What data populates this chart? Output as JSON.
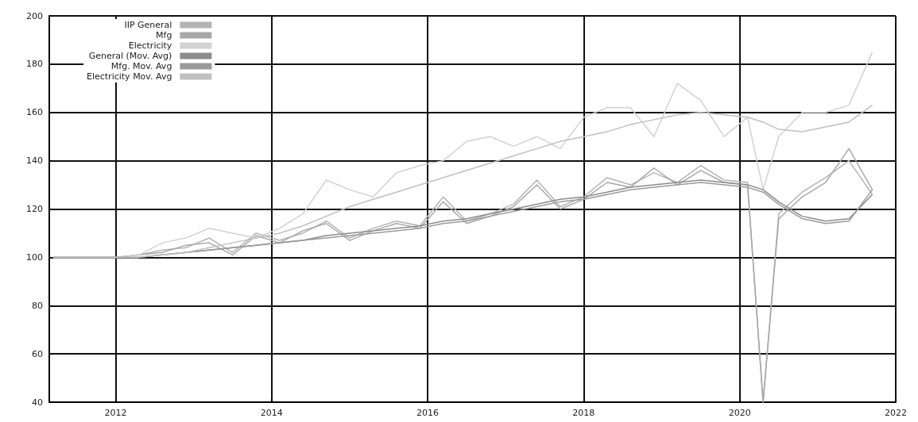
{
  "chart_data": {
    "type": "line",
    "x": [
      2011.2,
      2011.6,
      2012.0,
      2012.3,
      2012.6,
      2012.9,
      2013.2,
      2013.5,
      2013.8,
      2014.1,
      2014.4,
      2014.7,
      2015.0,
      2015.3,
      2015.6,
      2015.9,
      2016.2,
      2016.5,
      2016.8,
      2017.1,
      2017.4,
      2017.7,
      2018.0,
      2018.3,
      2018.6,
      2018.9,
      2019.2,
      2019.5,
      2019.8,
      2020.1,
      2020.3,
      2020.5,
      2020.8,
      2021.1,
      2021.4,
      2021.7
    ],
    "xlim": [
      2011.15,
      2022
    ],
    "xticks": [
      2012,
      2014,
      2016,
      2018,
      2020,
      2022
    ],
    "ylim": [
      40,
      200
    ],
    "yticks": [
      40,
      60,
      80,
      100,
      120,
      140,
      160,
      180,
      200
    ],
    "grid": true,
    "legend": "top left",
    "marker": "none",
    "line_style": "solid",
    "series": [
      {
        "name": "IIP General",
        "color": "#b4b4b4",
        "values": [
          100,
          100,
          100,
          101,
          103,
          104,
          108,
          102,
          110,
          107,
          110,
          115,
          108,
          112,
          115,
          113,
          125,
          115,
          118,
          122,
          132,
          121,
          125,
          133,
          130,
          135,
          131,
          138,
          132,
          131,
          40,
          118,
          127,
          133,
          140,
          126
        ]
      },
      {
        "name": "Mfg",
        "color": "#a8a8a8",
        "values": [
          100,
          100,
          100,
          101,
          102,
          105,
          106,
          101,
          109,
          106,
          111,
          114,
          107,
          111,
          114,
          112,
          123,
          114,
          117,
          121,
          130,
          120,
          124,
          131,
          129,
          137,
          130,
          136,
          131,
          130,
          40,
          116,
          125,
          131,
          145,
          128
        ]
      },
      {
        "name": "Electricity",
        "color": "#d2d2d2",
        "values": [
          100,
          100,
          100,
          101,
          106,
          108,
          112,
          110,
          108,
          112,
          118,
          132,
          128,
          125,
          135,
          138,
          140,
          148,
          150,
          146,
          150,
          145,
          158,
          162,
          162,
          150,
          172,
          165,
          150,
          158,
          128,
          150,
          160,
          160,
          163,
          185
        ]
      },
      {
        "name": "General (Mov. Avg)",
        "color": "#8c8c8c",
        "values": [
          100,
          100,
          100,
          100,
          101,
          102,
          103,
          104,
          105,
          106,
          107,
          109,
          110,
          111,
          112,
          113,
          115,
          116,
          118,
          120,
          122,
          124,
          125,
          127,
          129,
          130,
          131,
          132,
          131,
          130,
          128,
          123,
          117,
          115,
          116,
          126
        ]
      },
      {
        "name": "Mfg. Mov. Avg",
        "color": "#9a9a9a",
        "values": [
          100,
          100,
          100,
          100,
          101,
          102,
          103,
          104,
          105,
          106,
          107,
          108,
          109,
          110,
          111,
          112,
          114,
          115,
          117,
          119,
          121,
          123,
          124,
          126,
          128,
          129,
          130,
          131,
          130,
          129,
          127,
          122,
          116,
          114,
          115,
          128
        ]
      },
      {
        "name": "Electricity Mov. Avg",
        "color": "#c0c0c0",
        "values": [
          100,
          100,
          100,
          100,
          101,
          102,
          104,
          106,
          108,
          110,
          113,
          117,
          121,
          124,
          127,
          130,
          133,
          136,
          139,
          142,
          145,
          148,
          150,
          152,
          155,
          157,
          159,
          160,
          159,
          158,
          156,
          153,
          152,
          154,
          156,
          163
        ]
      }
    ]
  }
}
